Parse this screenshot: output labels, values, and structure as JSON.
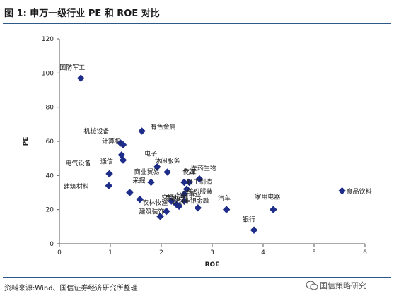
{
  "header": {
    "title": "图 1:  申万一级行业 PE 和 ROE 对比"
  },
  "footer": {
    "source": "资料来源:Wind、国信证券经济研究所整理"
  },
  "watermark": {
    "text": "国信策略研究"
  },
  "colors": {
    "marker": "#1f2d8a",
    "rule": "#2e5a8a"
  },
  "chart_data": {
    "type": "scatter",
    "xlabel": "ROE",
    "ylabel": "PE",
    "xlim": [
      0,
      6
    ],
    "ylim": [
      0,
      120
    ],
    "xticks": [
      "0",
      "1",
      "2",
      "3",
      "4",
      "5",
      "6"
    ],
    "yticks": [
      "0",
      "20",
      "40",
      "60",
      "80",
      "100",
      "120"
    ],
    "grid": false,
    "points": [
      {
        "label": "国防军工",
        "x": 0.42,
        "y": 97
      },
      {
        "label": "机械设备",
        "x": 1.2,
        "y": 59
      },
      {
        "label": "有色金属",
        "x": 1.62,
        "y": 66
      },
      {
        "label": "计算机",
        "x": 1.25,
        "y": 58
      },
      {
        "label": "通信",
        "x": 1.22,
        "y": 52
      },
      {
        "label": "",
        "x": 1.25,
        "y": 49
      },
      {
        "label": "电气设备",
        "x": 0.98,
        "y": 41
      },
      {
        "label": "建筑材料",
        "x": 0.97,
        "y": 34
      },
      {
        "label": "电子",
        "x": 1.92,
        "y": 45
      },
      {
        "label": "休闲服务",
        "x": 2.12,
        "y": 42
      },
      {
        "label": "商业贸易",
        "x": 1.8,
        "y": 36
      },
      {
        "label": "采掘",
        "x": 1.38,
        "y": 30
      },
      {
        "label": "",
        "x": 1.58,
        "y": 26
      },
      {
        "label": "传媒",
        "x": 2.45,
        "y": 36
      },
      {
        "label": "医药生物",
        "x": 2.75,
        "y": 38
      },
      {
        "label": "化工",
        "x": 2.55,
        "y": 36
      },
      {
        "label": "轻工制造",
        "x": 2.5,
        "y": 32
      },
      {
        "label": "纺织服装",
        "x": 2.45,
        "y": 29
      },
      {
        "label": "公用事业",
        "x": 2.45,
        "y": 25
      },
      {
        "label": "交通运输",
        "x": 2.2,
        "y": 25
      },
      {
        "label": "农林牧渔",
        "x": 2.1,
        "y": 19
      },
      {
        "label": "建筑装饰",
        "x": 1.98,
        "y": 16
      },
      {
        "label": "钢铁",
        "x": 2.35,
        "y": 22
      },
      {
        "label": "房地产",
        "x": 2.3,
        "y": 23
      },
      {
        "label": "非银金融",
        "x": 2.72,
        "y": 21
      },
      {
        "label": "汽车",
        "x": 3.28,
        "y": 20
      },
      {
        "label": "家用电器",
        "x": 4.2,
        "y": 20
      },
      {
        "label": "银行",
        "x": 3.82,
        "y": 8
      },
      {
        "label": "食品饮料",
        "x": 5.55,
        "y": 31
      }
    ]
  }
}
